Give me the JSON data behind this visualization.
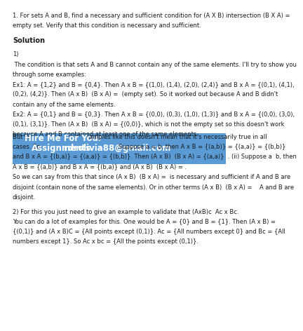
{
  "bg_color": "#ffffff",
  "text_color": "#1a1a1a",
  "highlight_color": "#5b9bd5",
  "title_line1": "1. For sets A and B, find a necessary and sufficient condition for (A X B) intersection (B X A) =",
  "title_line2": "empty set. Verify that this condition is necessary and sufficient.",
  "solution_label": "Solution",
  "section1_label": "1)",
  "para1_line1": " The condition is that sets A and B cannot contain any of the same elements. I'll try to show you",
  "para1_line2": "through some examples:",
  "ex1_line1": "Ex1: A = {1,2} and B = {0,4}. Then A x B = {(1,0), (1,4), (2,0), (2,4)} and B x A = {(0,1), (4,1),",
  "ex1_line2": "(0,2), (4,2)}. Then (A x B)  (B x A) =  (empty set). So it worked out because A and B didn't",
  "ex1_line3": "contain any of the same elements.",
  "ex2_line1": "Ex2: A = {0,1} and B = {0,3}. Then A x B = {(0,0), (0,3), (1,0), (1,3)} and B x A = {(0,0), (3,0),",
  "ex2_line2": "(0,1), (3,1)}. Then (A x B)  (B x A) = {(0,0)}, which is not the empty set so this doesn't work",
  "ex2_line3": "because A and B contained at least one of the same elements.",
  "hl_pre": "But si",
  "hl_big": "Hire Me For Your",
  "hl_post": "amples like this doesn't mean that it's necessarily true in all",
  "hl2_pre": "cases. So ",
  "hl2_big": "Assignments",
  "hl2_email": "rdrolivia88@gmail.com",
  "hl2_post": "Suppose a = b, then A x B = {(a,b)} = {(a,a)} = {(b,b)}",
  "proof2": "and B x A = {(b,a)} = {(a,a)} = {(b,b)}. Then (A x B)  (B x A) = {(a,a)}  . (ii) Suppose a  b, then",
  "proof3": "A x B = {(a,b)} and B x A = {(b,a)} and (A x B)  (B x A) = .",
  "conc1": "So we can say from this that since (A x B)  (B x A) =  is necessary and sufficient if A and B are",
  "conc2": "disjoint (contain none of the same elements). Or in other terms (A x B)  (B x A) =    A and B are",
  "conc3": "disjoint.",
  "s2_1": "2) For this you just need to give an example to validate that (AxB)c  Ac x Bc.",
  "s2_2": "You can do a lot of examples for this. One would be A = {0} and B = {1}. Then (A x B) =",
  "s2_3": "{(0,1)} and (A x B)C = {All points except (0,1)}. Ac = {All numbers except 0} and Bc = {All",
  "s2_4": "numbers except 1}. So Ac x bc = {All the points except (0,1)}.",
  "fs": 6.0,
  "fs_bold": 6.0,
  "fs_solution": 7.0,
  "fs_highlight_big": 8.5,
  "lm": 0.025,
  "rm": 0.975
}
